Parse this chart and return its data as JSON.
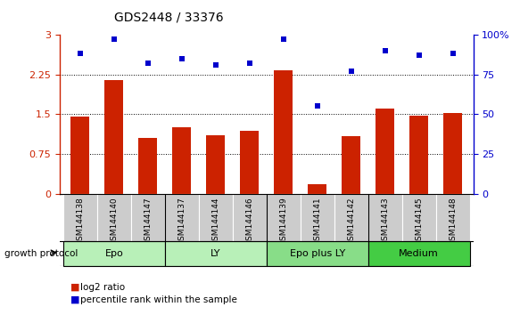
{
  "title": "GDS2448 / 33376",
  "samples": [
    "GSM144138",
    "GSM144140",
    "GSM144147",
    "GSM144137",
    "GSM144144",
    "GSM144146",
    "GSM144139",
    "GSM144141",
    "GSM144142",
    "GSM144143",
    "GSM144145",
    "GSM144148"
  ],
  "log2_ratio": [
    1.45,
    2.15,
    1.05,
    1.25,
    1.1,
    1.18,
    2.32,
    0.18,
    1.08,
    1.6,
    1.48,
    1.52
  ],
  "percentile_rank": [
    88,
    97,
    82,
    85,
    81,
    82,
    97,
    55,
    77,
    90,
    87,
    88
  ],
  "groups": [
    {
      "label": "Epo",
      "start": 0,
      "end": 3,
      "color": "#b8f0b8"
    },
    {
      "label": "LY",
      "start": 3,
      "end": 6,
      "color": "#b8f0b8"
    },
    {
      "label": "Epo plus LY",
      "start": 6,
      "end": 9,
      "color": "#88dd88"
    },
    {
      "label": "Medium",
      "start": 9,
      "end": 12,
      "color": "#44cc44"
    }
  ],
  "ylim_left": [
    0,
    3
  ],
  "ylim_right": [
    0,
    100
  ],
  "yticks_left": [
    0,
    0.75,
    1.5,
    2.25,
    3
  ],
  "yticks_right": [
    0,
    25,
    50,
    75,
    100
  ],
  "bar_color": "#cc2200",
  "dot_color": "#0000cc",
  "bg_color": "#ffffff",
  "xlabel_color": "#cc2200",
  "ylabel_right_color": "#0000cc",
  "grid_color": "#000000",
  "label_log2": "log2 ratio",
  "label_pct": "percentile rank within the sample",
  "group_label_row": "growth protocol",
  "sample_box_color": "#cccccc",
  "group_border_colors": [
    "#88dd88",
    "#88dd88",
    "#66cc66",
    "#33aa33"
  ]
}
